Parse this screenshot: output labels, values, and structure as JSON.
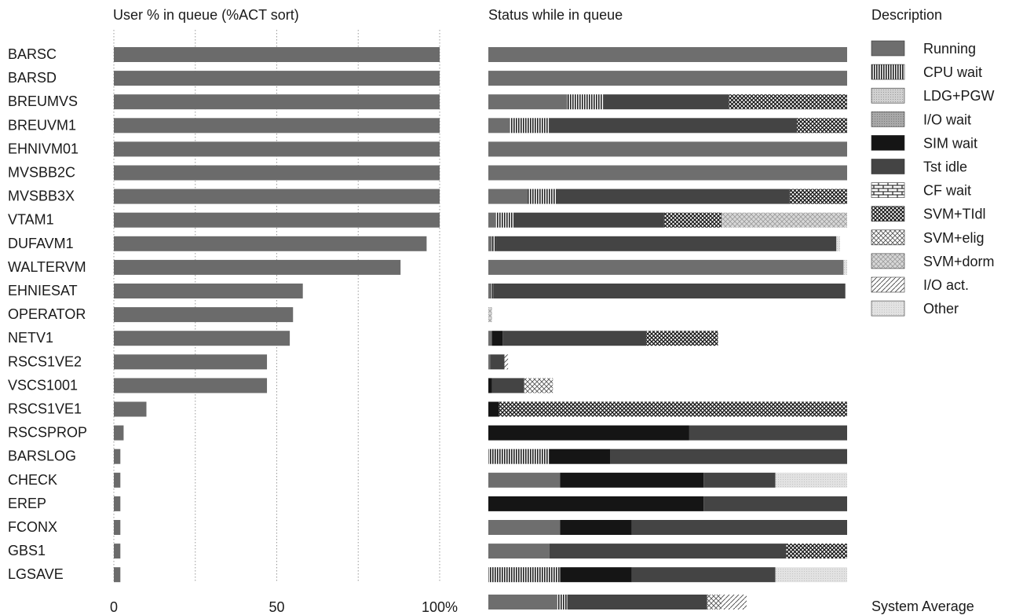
{
  "chart_data": [
    {
      "type": "bar",
      "orientation": "horizontal",
      "title": "User % in queue (%ACT sort)",
      "categories": [
        "BARSC",
        "BARSD",
        "BREUMVS",
        "BREUVM1",
        "EHNIVM01",
        "MVSBB2C",
        "MVSBB3X",
        "VTAM1",
        "DUFAVM1",
        "WALTERVM",
        "EHNIESAT",
        "OPERATOR",
        "NETV1",
        "RSCS1VE2",
        "VSCS1001",
        "RSCS1VE1",
        "RSCSPROP",
        "BARSLOG",
        "CHECK",
        "EREP",
        "FCONX",
        "GBS1",
        "LGSAVE"
      ],
      "values": [
        100,
        100,
        100,
        100,
        100,
        100,
        100,
        100,
        96,
        88,
        58,
        55,
        54,
        47,
        47,
        10,
        3,
        2,
        2,
        2,
        2,
        2,
        2
      ],
      "xlim": [
        0,
        100
      ],
      "xticks": [
        "0",
        "50",
        "100%"
      ],
      "grid": true,
      "color": "#6b6b6b"
    },
    {
      "type": "stacked-bar",
      "orientation": "horizontal",
      "title": "Status while in queue",
      "legend_title": "Description",
      "legend_position": "right",
      "categories": [
        "BARSC",
        "BARSD",
        "BREUMVS",
        "BREUVM1",
        "EHNIVM01",
        "MVSBB2C",
        "MVSBB3X",
        "VTAM1",
        "DUFAVM1",
        "WALTERVM",
        "EHNIESAT",
        "OPERATOR",
        "NETV1",
        "RSCS1VE2",
        "VSCS1001",
        "RSCS1VE1",
        "RSCSPROP",
        "BARSLOG",
        "CHECK",
        "EREP",
        "FCONX",
        "GBS1",
        "LGSAVE",
        "System Average"
      ],
      "series": [
        {
          "name": "Running",
          "pattern": "solid-mid",
          "values": [
            100,
            100,
            22,
            6,
            100,
            100,
            11,
            2,
            1,
            99,
            1,
            0,
            1,
            0.5,
            0,
            0,
            0,
            0,
            20,
            0,
            20,
            17,
            0,
            19
          ]
        },
        {
          "name": "CPU wait",
          "pattern": "vlines",
          "values": [
            0,
            0,
            10,
            11,
            0,
            0,
            8,
            5,
            1,
            0,
            0.5,
            0,
            0,
            0,
            0,
            0,
            0,
            17,
            0,
            0,
            0,
            0,
            20,
            3
          ]
        },
        {
          "name": "LDG+PGW",
          "pattern": "light-dots",
          "values": [
            0,
            0,
            0,
            0,
            0,
            0,
            0,
            0,
            0,
            0,
            0,
            0,
            0,
            0,
            0,
            0,
            0,
            0,
            0,
            0,
            0,
            0,
            0,
            0
          ]
        },
        {
          "name": "I/O wait",
          "pattern": "mid-dots",
          "values": [
            0,
            0,
            0,
            0,
            0,
            0,
            0,
            0,
            0,
            0,
            0,
            0,
            0,
            0,
            0,
            0,
            0,
            0,
            0,
            0,
            0,
            0,
            0,
            0
          ]
        },
        {
          "name": "SIM wait",
          "pattern": "solid-black",
          "values": [
            0,
            0,
            0,
            0,
            0,
            0,
            0,
            0,
            0,
            0,
            0,
            0,
            3,
            0,
            1,
            3,
            56,
            17,
            40,
            60,
            20,
            0,
            20,
            0
          ]
        },
        {
          "name": "Tst idle",
          "pattern": "solid-dark",
          "values": [
            0,
            0,
            35,
            69,
            0,
            0,
            65,
            42,
            95,
            0,
            98,
            0,
            40,
            4,
            9,
            0,
            44,
            66,
            20,
            40,
            60,
            66,
            40,
            39
          ]
        },
        {
          "name": "CF wait",
          "pattern": "bricks",
          "values": [
            0,
            0,
            0,
            0,
            0,
            0,
            0,
            0,
            0,
            0,
            0,
            0,
            0,
            0,
            0,
            0,
            0,
            0,
            0,
            0,
            0,
            0,
            0,
            0
          ]
        },
        {
          "name": "SVM+TIdl",
          "pattern": "crosshatch-dense",
          "values": [
            0,
            0,
            33,
            14,
            0,
            0,
            16,
            16,
            0,
            0,
            0,
            0,
            20,
            0,
            0,
            97,
            0,
            0,
            0,
            0,
            0,
            17,
            0,
            0
          ]
        },
        {
          "name": "SVM+elig",
          "pattern": "crosshatch-mid",
          "values": [
            0,
            0,
            0,
            0,
            0,
            0,
            0,
            0,
            0,
            0,
            0,
            0,
            0,
            0,
            8,
            0,
            0,
            0,
            0,
            0,
            0,
            0,
            0,
            4
          ]
        },
        {
          "name": "SVM+dorm",
          "pattern": "crosshatch-light",
          "values": [
            0,
            0,
            0,
            0,
            0,
            0,
            0,
            35,
            0,
            0,
            0,
            1,
            0,
            0,
            0,
            0,
            0,
            0,
            0,
            0,
            0,
            0,
            0,
            0
          ]
        },
        {
          "name": "I/O act.",
          "pattern": "diagonal",
          "values": [
            0,
            0,
            0,
            0,
            0,
            0,
            0,
            0,
            0,
            0,
            0,
            0,
            0,
            1,
            0,
            0,
            0,
            0,
            0,
            0,
            0,
            0,
            0,
            7
          ]
        },
        {
          "name": "Other",
          "pattern": "very-light",
          "values": [
            0,
            0,
            0,
            0,
            0,
            0,
            0,
            0,
            1,
            1,
            0,
            0,
            0,
            0,
            0,
            0,
            0,
            0,
            20,
            0,
            0,
            0,
            20,
            0
          ]
        }
      ],
      "segments_order_note": "ignored"
    }
  ]
}
